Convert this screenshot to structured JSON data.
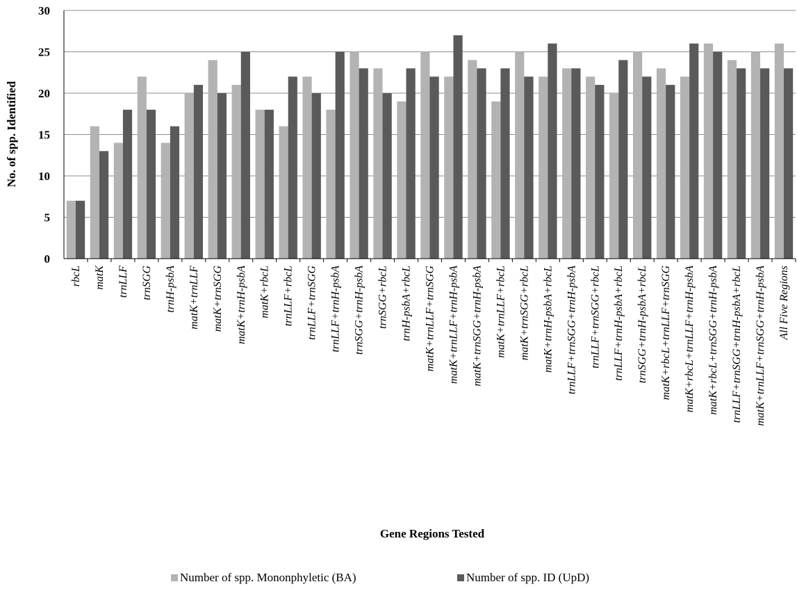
{
  "chart_data": {
    "type": "bar",
    "title": "",
    "xlabel": "Gene Regions Tested",
    "ylabel": "No. of spp. Identified",
    "ylim": [
      0,
      30
    ],
    "yticks": [
      0,
      5,
      10,
      15,
      20,
      25,
      30
    ],
    "grid": true,
    "legend_position": "bottom",
    "categories": [
      "rbcL",
      "matK",
      "trnLLF",
      "trnSGG",
      "trnH-psbA",
      "matK+trnLLF",
      "matK+trnSGG",
      "matK+trnH-psbA",
      "matK+rbcL",
      "trnLLF+rbcL",
      "trnLLF+trnSGG",
      "trnLLF+trnH-psbA",
      "trnSGG+trnH-psbA",
      "trnSGG+rbcL",
      "trnH-psbA+rbcL",
      "matK+trnLLF+trnSGG",
      "matK+trnLLF+trnH-psbA",
      "matK+trnSGG+trnH-psbA",
      "matK+trnLLF+rbcL",
      "matK+trnSGG+rbcL",
      "matK+trnH-psbA+rbcL",
      "trnLLF+trnSGG+trnH-psbA",
      "trnLLF+trnSGG+rbcL",
      "trnLLF+trnH-psbA+rbcL",
      "trnSGG+trnH-psbA+rbcL",
      "matK+rbcL+trnLLF+trnSGG",
      "matK+rbcL+trnLLF+trnH-psbA",
      "matK+rbcL+trnSGG+trnH-psbA",
      "trnLLF+trnSGG+trnH-psbA+rbcL",
      "matK+trnLLF+trnSGG+trnH-psbA",
      "All Five Regions"
    ],
    "series": [
      {
        "name": "Number of spp. Mononphyletic (BA)",
        "color": "#b3b3b3",
        "values": [
          7,
          16,
          14,
          22,
          14,
          20,
          24,
          21,
          18,
          16,
          22,
          18,
          25,
          23,
          19,
          25,
          22,
          24,
          19,
          25,
          22,
          23,
          22,
          20,
          25,
          23,
          22,
          26,
          24,
          25,
          26
        ]
      },
      {
        "name": "Number of spp. ID (UpD)",
        "color": "#5a5a5a",
        "values": [
          7,
          13,
          18,
          18,
          16,
          21,
          20,
          25,
          18,
          22,
          20,
          25,
          23,
          20,
          23,
          22,
          27,
          23,
          23,
          22,
          26,
          23,
          21,
          24,
          22,
          21,
          26,
          25,
          23,
          23,
          23
        ]
      }
    ]
  }
}
